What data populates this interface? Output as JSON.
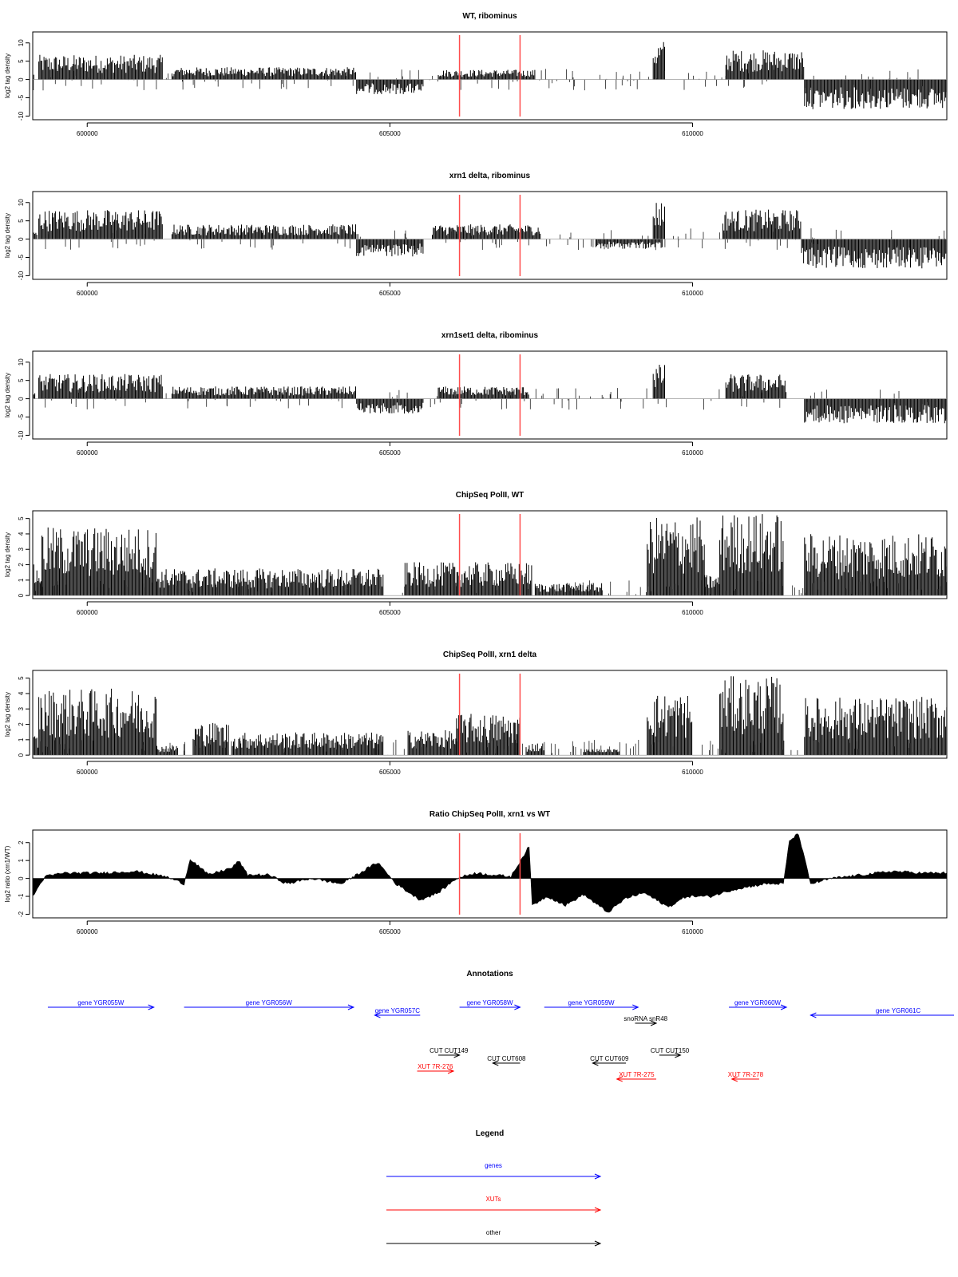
{
  "colors": {
    "gene": "#0000ff",
    "xut": "#ff0000",
    "other": "#000000",
    "marker": "#ff4d4d",
    "signal": "#000000"
  },
  "x_axis": {
    "ticks": [
      600000,
      605000,
      610000
    ],
    "tick_labels": [
      "600000",
      "605000",
      "610000"
    ],
    "xlim": [
      599100,
      614200
    ]
  },
  "markers": {
    "positions": [
      606150,
      607150
    ]
  },
  "chart_data": [
    {
      "type": "area",
      "title": "WT, ribominus",
      "ylabel": "log2 tag density",
      "ylim": [
        -11,
        13
      ],
      "yticks": [
        -10,
        -5,
        0,
        5,
        10
      ],
      "tick_labels": [
        "-10",
        "-5",
        "0",
        "5",
        "10"
      ],
      "segments": [
        {
          "from": 599100,
          "to": 599120,
          "value": 2
        },
        {
          "from": 599200,
          "to": 601250,
          "value": 5
        },
        {
          "from": 601400,
          "to": 604450,
          "value": 2.5
        },
        {
          "from": 604450,
          "to": 605550,
          "value": -3
        },
        {
          "from": 605800,
          "to": 607400,
          "value": 2
        },
        {
          "from": 609350,
          "to": 609550,
          "value": 8
        },
        {
          "from": 610550,
          "to": 611850,
          "value": 6
        },
        {
          "from": 611850,
          "to": 614200,
          "value": -6
        }
      ]
    },
    {
      "type": "area",
      "title": "xrn1 delta, ribominus",
      "ylabel": "log2 tag density",
      "ylim": [
        -11,
        13
      ],
      "yticks": [
        -10,
        -5,
        0,
        5,
        10
      ],
      "tick_labels": [
        "-10",
        "-5",
        "0",
        "5",
        "10"
      ],
      "segments": [
        {
          "from": 599100,
          "to": 599180,
          "value": 1.5
        },
        {
          "from": 599200,
          "to": 601250,
          "value": 6
        },
        {
          "from": 601400,
          "to": 604450,
          "value": 3
        },
        {
          "from": 604450,
          "to": 605550,
          "value": -3.5
        },
        {
          "from": 605700,
          "to": 607500,
          "value": 3
        },
        {
          "from": 608400,
          "to": 609500,
          "value": -2
        },
        {
          "from": 609350,
          "to": 609550,
          "value": 8
        },
        {
          "from": 610500,
          "to": 611800,
          "value": 6
        },
        {
          "from": 611800,
          "to": 614200,
          "value": -6
        }
      ]
    },
    {
      "type": "area",
      "title": "xrn1set1 delta, ribominus",
      "ylabel": "log2 tag density",
      "ylim": [
        -11,
        13
      ],
      "yticks": [
        -10,
        -5,
        0,
        5,
        10
      ],
      "tick_labels": [
        "-10",
        "-5",
        "0",
        "5",
        "10"
      ],
      "segments": [
        {
          "from": 599100,
          "to": 599140,
          "value": 1.5
        },
        {
          "from": 599200,
          "to": 601250,
          "value": 5
        },
        {
          "from": 601400,
          "to": 604450,
          "value": 2.5
        },
        {
          "from": 604450,
          "to": 605550,
          "value": -3
        },
        {
          "from": 605800,
          "to": 607300,
          "value": 2.5
        },
        {
          "from": 609350,
          "to": 609550,
          "value": 7
        },
        {
          "from": 610550,
          "to": 611550,
          "value": 5
        },
        {
          "from": 611850,
          "to": 614200,
          "value": -5
        }
      ]
    },
    {
      "type": "area",
      "title": "ChipSeq PolII, WT",
      "ylabel": "log2 tag density",
      "ylim": [
        -0.2,
        5.5
      ],
      "yticks": [
        0,
        1,
        2,
        3,
        4,
        5
      ],
      "tick_labels": [
        "0",
        "1",
        "2",
        "3",
        "4",
        "5"
      ],
      "segments": [
        {
          "from": 599100,
          "to": 599250,
          "value": 1.5
        },
        {
          "from": 599250,
          "to": 601150,
          "value": 3.3
        },
        {
          "from": 601150,
          "to": 604900,
          "value": 1.3
        },
        {
          "from": 605250,
          "to": 607350,
          "value": 1.6
        },
        {
          "from": 607400,
          "to": 608500,
          "value": 0.6
        },
        {
          "from": 609250,
          "to": 610200,
          "value": 3.8
        },
        {
          "from": 610200,
          "to": 610450,
          "value": 1
        },
        {
          "from": 610450,
          "to": 611500,
          "value": 4
        },
        {
          "from": 611850,
          "to": 614200,
          "value": 3
        }
      ]
    },
    {
      "type": "area",
      "title": "ChipSeq PolII, xrn1 delta",
      "ylabel": "log2 tag density",
      "ylim": [
        -0.2,
        5.5
      ],
      "yticks": [
        0,
        1,
        2,
        3,
        4,
        5
      ],
      "tick_labels": [
        "0",
        "1",
        "2",
        "3",
        "4",
        "5"
      ],
      "segments": [
        {
          "from": 599100,
          "to": 599200,
          "value": 1
        },
        {
          "from": 599200,
          "to": 601150,
          "value": 3.2
        },
        {
          "from": 601150,
          "to": 601500,
          "value": 0.5
        },
        {
          "from": 601750,
          "to": 602350,
          "value": 1.6
        },
        {
          "from": 602400,
          "to": 604900,
          "value": 1.1
        },
        {
          "from": 605300,
          "to": 606100,
          "value": 1.2
        },
        {
          "from": 606100,
          "to": 607150,
          "value": 2
        },
        {
          "from": 607250,
          "to": 607550,
          "value": 0.6
        },
        {
          "from": 608200,
          "to": 608800,
          "value": 0.3
        },
        {
          "from": 609250,
          "to": 610000,
          "value": 3
        },
        {
          "from": 610450,
          "to": 611500,
          "value": 3.8
        },
        {
          "from": 611850,
          "to": 614200,
          "value": 2.8
        }
      ]
    },
    {
      "type": "area",
      "title": "Ratio ChipSeq PolII, xrn1 vs WT",
      "ylabel": "log2 ratio (xrn1/WT)",
      "ylim": [
        -2.2,
        2.7
      ],
      "yticks": [
        -2,
        -1,
        0,
        1,
        2
      ],
      "tick_labels": [
        "-2",
        "-1",
        "0",
        "1",
        "2"
      ],
      "profile": [
        [
          599100,
          -1.0
        ],
        [
          599300,
          0.1
        ],
        [
          599600,
          0.3
        ],
        [
          600200,
          0.3
        ],
        [
          600800,
          0.4
        ],
        [
          601300,
          0.1
        ],
        [
          601600,
          -0.3
        ],
        [
          601700,
          1.1
        ],
        [
          602000,
          0.2
        ],
        [
          602400,
          0.6
        ],
        [
          602500,
          1.0
        ],
        [
          602650,
          0.2
        ],
        [
          603000,
          0.2
        ],
        [
          603300,
          -0.3
        ],
        [
          603700,
          0.0
        ],
        [
          604200,
          -0.3
        ],
        [
          604800,
          0.9
        ],
        [
          605100,
          -0.3
        ],
        [
          605500,
          -1.2
        ],
        [
          605800,
          -0.8
        ],
        [
          606100,
          0.0
        ],
        [
          606400,
          0.3
        ],
        [
          607000,
          0.1
        ],
        [
          607300,
          1.8
        ],
        [
          607350,
          -1.5
        ],
        [
          607600,
          -1.0
        ],
        [
          607900,
          -1.5
        ],
        [
          608200,
          -0.9
        ],
        [
          608600,
          -1.9
        ],
        [
          608900,
          -1.1
        ],
        [
          609200,
          -0.8
        ],
        [
          609600,
          -1.6
        ],
        [
          609900,
          -1.0
        ],
        [
          610300,
          -1.0
        ],
        [
          610700,
          -0.6
        ],
        [
          611200,
          -0.3
        ],
        [
          611500,
          -0.3
        ],
        [
          611600,
          2.1
        ],
        [
          611750,
          2.5
        ],
        [
          611950,
          -0.3
        ],
        [
          612300,
          0.0
        ],
        [
          612800,
          0.2
        ],
        [
          613300,
          0.4
        ],
        [
          613800,
          0.3
        ],
        [
          614200,
          0.3
        ]
      ]
    }
  ],
  "annotations": {
    "title": "Annotations",
    "items": [
      {
        "label": "gene YGR055W",
        "kind": "gene",
        "from": 599350,
        "to": 601100,
        "dir": "right",
        "row": 0
      },
      {
        "label": "gene YGR056W",
        "kind": "gene",
        "from": 601600,
        "to": 604400,
        "dir": "right",
        "row": 0
      },
      {
        "label": "gene YGR057C",
        "kind": "gene",
        "from": 604750,
        "to": 605500,
        "dir": "left",
        "row": 1
      },
      {
        "label": "gene YGR058W",
        "kind": "gene",
        "from": 606150,
        "to": 607150,
        "dir": "right",
        "row": 0
      },
      {
        "label": "gene YGR059W",
        "kind": "gene",
        "from": 607550,
        "to": 609100,
        "dir": "right",
        "row": 0
      },
      {
        "label": "snoRNA snR48",
        "kind": "other",
        "from": 609050,
        "to": 609400,
        "dir": "right",
        "row": 2
      },
      {
        "label": "gene YGR060W",
        "kind": "gene",
        "from": 610600,
        "to": 611550,
        "dir": "right",
        "row": 0
      },
      {
        "label": "gene YGR061C",
        "kind": "gene",
        "from": 611950,
        "to": 614400,
        "dir": "left",
        "row": 1
      },
      {
        "label": "CUT CUT149",
        "kind": "other",
        "from": 605800,
        "to": 606150,
        "dir": "right",
        "row": 4
      },
      {
        "label": "CUT CUT608",
        "kind": "other",
        "from": 606700,
        "to": 607150,
        "dir": "left",
        "row": 5
      },
      {
        "label": "CUT CUT609",
        "kind": "other",
        "from": 608350,
        "to": 608900,
        "dir": "left",
        "row": 5
      },
      {
        "label": "CUT CUT150",
        "kind": "other",
        "from": 609450,
        "to": 609800,
        "dir": "right",
        "row": 4
      },
      {
        "label": "XUT 7R-276",
        "kind": "xut",
        "from": 605450,
        "to": 606050,
        "dir": "right",
        "row": 6
      },
      {
        "label": "XUT 7R-275",
        "kind": "xut",
        "from": 608750,
        "to": 609400,
        "dir": "left",
        "row": 7
      },
      {
        "label": "XUT 7R-278",
        "kind": "xut",
        "from": 610650,
        "to": 611100,
        "dir": "left",
        "row": 7
      }
    ]
  },
  "legend": {
    "title": "Legend",
    "items": [
      {
        "label": "genes",
        "kind": "gene"
      },
      {
        "label": "XUTs",
        "kind": "xut"
      },
      {
        "label": "other",
        "kind": "other"
      }
    ]
  }
}
